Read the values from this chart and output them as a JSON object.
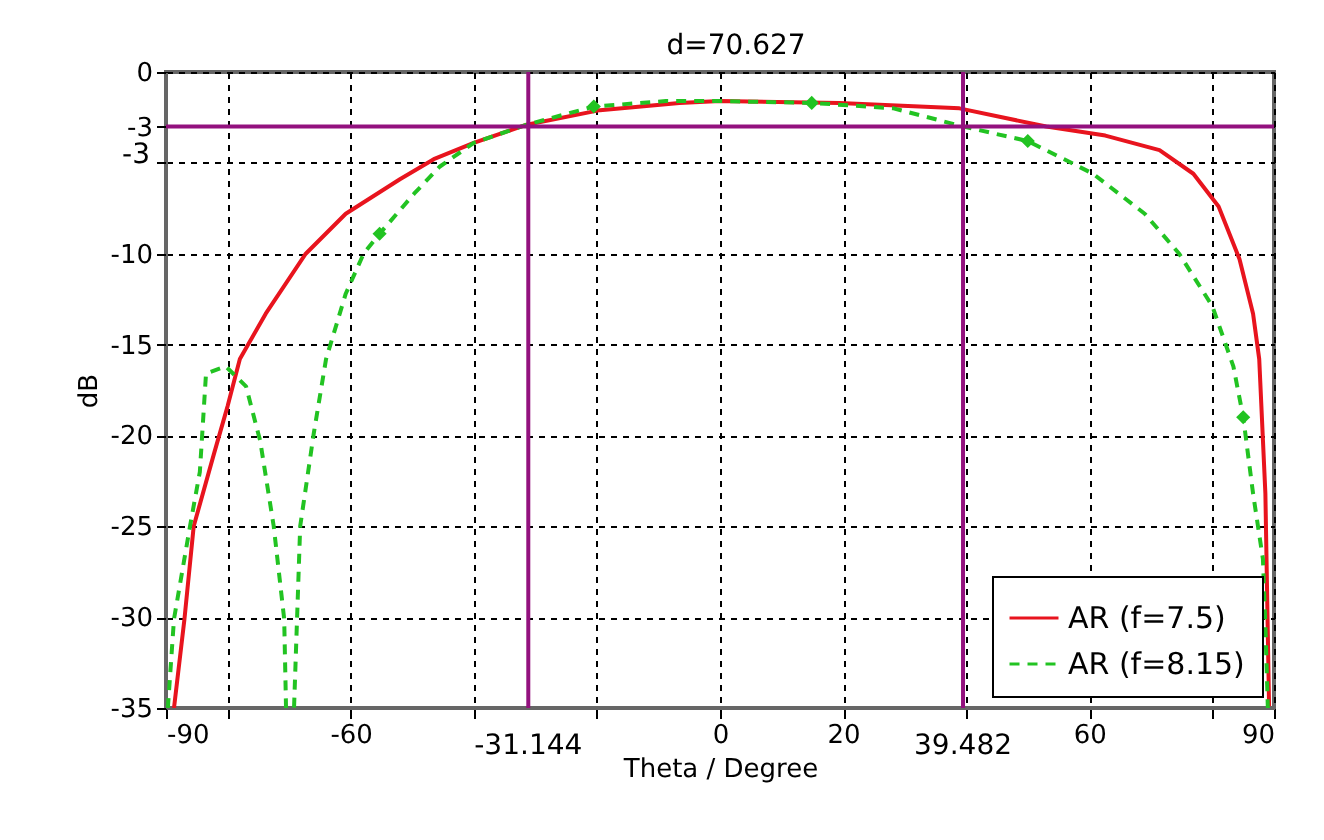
{
  "chart_data": {
    "type": "line",
    "xlabel": "Theta / Degree",
    "ylabel": "dB",
    "xlim": [
      -90,
      90
    ],
    "ylim": [
      -35,
      0
    ],
    "xticks": [
      -90,
      {
        "value": -80,
        "label": null
      },
      -60,
      {
        "value": -40,
        "label": null
      },
      {
        "value": -20,
        "label": null
      },
      0,
      20,
      {
        "value": 40,
        "label": null
      },
      60,
      {
        "value": 80,
        "label": null
      },
      90
    ],
    "yticks": [
      0,
      -3,
      {
        "value": -5,
        "label": null
      },
      -10,
      -15,
      -20,
      -25,
      -30,
      -35
    ],
    "grid": true,
    "legend": "bottom right",
    "series": [
      {
        "name": "AR (f=7.5)",
        "color": "#e8141e",
        "line_style": "solid",
        "x": [
          -88.7,
          -87,
          -85.5,
          -82.2,
          -80,
          -78,
          -73.8,
          -67.3,
          -60.8,
          -52,
          -46.5,
          -40,
          -31.4,
          -19.5,
          -6.6,
          0,
          19.4,
          38.9,
          53,
          62.6,
          71.4,
          76.9,
          81,
          84.4,
          86.6,
          87.6,
          88.6,
          89.2
        ],
        "values": [
          -35,
          -30.1,
          -25,
          -21,
          -18.4,
          -15.8,
          -13.3,
          -10,
          -7.8,
          -5.9,
          -4.8,
          -3.9,
          -2.9,
          -2.1,
          -1.7,
          -1.6,
          -1.7,
          -2.0,
          -3,
          -3.5,
          -4.3,
          -5.6,
          -7.4,
          -10.3,
          -13.3,
          -15.8,
          -23.2,
          -34.9
        ]
      },
      {
        "name": "AR (f=8.15)",
        "color": "#22c322",
        "line_style": "dashed",
        "x": [
          -89.7,
          -88.7,
          -86.1,
          -84.5,
          -83.5,
          -80.3,
          -77,
          -74.7,
          -72.5,
          -70.8,
          -70.5,
          -69.2,
          -68.2,
          -66,
          -64,
          -60.8,
          -57.9,
          -55.3,
          -49.7,
          -45.5,
          -40,
          -31.4,
          -20.5,
          -8.8,
          0,
          14.9,
          28.2,
          39.5,
          50,
          60.6,
          69,
          74.6,
          80,
          83.4,
          85,
          86.6,
          88.2,
          88.6,
          89
        ],
        "values": [
          -35,
          -30.1,
          -25,
          -22,
          -16.6,
          -16.2,
          -17.3,
          -20.3,
          -25,
          -30.1,
          -35,
          -35,
          -25,
          -19.9,
          -15.8,
          -12.2,
          -10,
          -8.9,
          -6.7,
          -5.2,
          -3.9,
          -2.9,
          -1.9,
          -1.6,
          -1.6,
          -1.7,
          -2.0,
          -3,
          -3.8,
          -5.6,
          -7.8,
          -10,
          -12.9,
          -16.2,
          -19,
          -23.2,
          -26.8,
          -30.5,
          -35
        ]
      },
      {
        "type": "scatter",
        "color": "#22c322",
        "marker": "diamond",
        "x": [
          -55.3,
          -20.5,
          14.9,
          50,
          85
        ],
        "values": [
          -8.9,
          -1.9,
          -1.7,
          -3.8,
          -19
        ]
      }
    ],
    "ref_lines": [
      {
        "axis": "x",
        "value": -31.144,
        "label": "-31.144",
        "color": "#93117e"
      },
      {
        "axis": "x",
        "value": 39.482,
        "label": "39.482",
        "color": "#93117e"
      },
      {
        "axis": "y",
        "value": -3,
        "label": "-3",
        "color": "#93117e"
      }
    ],
    "annotations": [
      "d=70.627"
    ]
  }
}
